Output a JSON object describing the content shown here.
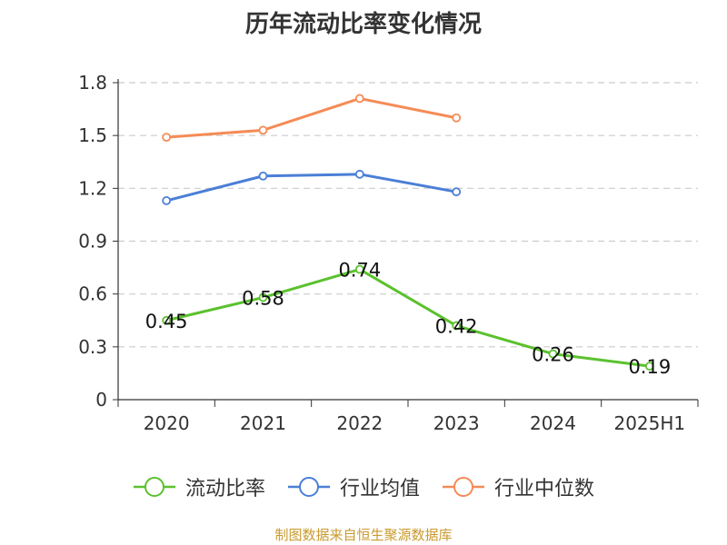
{
  "chart_data": {
    "type": "line",
    "title": "历年流动比率变化情况",
    "categories": [
      "2020",
      "2021",
      "2022",
      "2023",
      "2024",
      "2025H1"
    ],
    "ylim": [
      0,
      1.8
    ],
    "yticks": [
      "0",
      "0.3",
      "0.6",
      "0.9",
      "1.2",
      "1.5",
      "1.8"
    ],
    "grid": true,
    "legend_position": "bottom",
    "series": [
      {
        "name": "流动比率",
        "color": "#5bc12e",
        "values": [
          0.45,
          0.58,
          0.74,
          0.42,
          0.26,
          0.19
        ],
        "labels": [
          "0.45",
          "0.58",
          "0.74",
          "0.42",
          "0.26",
          "0.19"
        ]
      },
      {
        "name": "行业均值",
        "color": "#4a7fd6",
        "values": [
          1.13,
          1.27,
          1.28,
          1.18,
          null,
          null
        ]
      },
      {
        "name": "行业中位数",
        "color": "#f58b55",
        "values": [
          1.49,
          1.53,
          1.71,
          1.6,
          null,
          null
        ]
      }
    ]
  },
  "source_note": "制图数据来自恒生聚源数据库"
}
